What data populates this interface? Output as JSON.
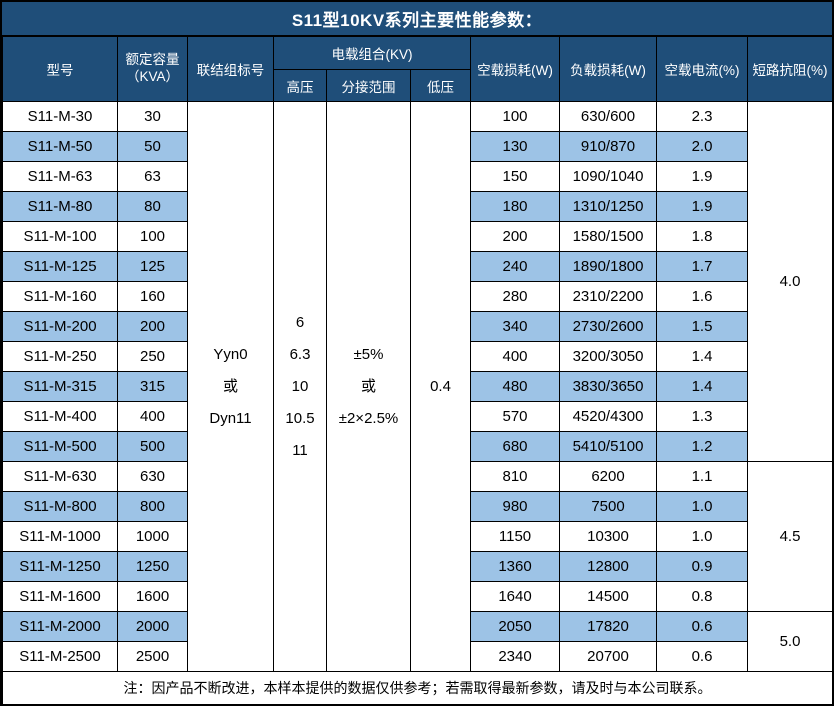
{
  "title": "S11型10KV系列主要性能参数：",
  "colors": {
    "header_bg": "#1F4E79",
    "header_text": "#FFFFFF",
    "alt_row_bg": "#9DC3E6",
    "border": "#000000"
  },
  "header": {
    "model": "型号",
    "capacity_line1": "额定容量",
    "capacity_line2": "（KVA）",
    "connection": "联结组标号",
    "voltage_group": "电载组合(KV)",
    "hv": "高压",
    "tap_range": "分接范围",
    "lv": "低压",
    "no_load_loss": "空载损耗(W)",
    "load_loss": "负载损耗(W)",
    "no_load_current": "空载电流(%)",
    "impedance": "短路抗阻(%)"
  },
  "merged": {
    "connection_lines": [
      "Yyn0",
      "或",
      "Dyn11"
    ],
    "hv_lines": [
      "6",
      "6.3",
      "10",
      "10.5",
      "11"
    ],
    "tap_lines": [
      "±5%",
      "或",
      "±2×2.5%"
    ],
    "lv": "0.4"
  },
  "rows": [
    {
      "model": "S11-M-30",
      "capacity": "30",
      "no_load_loss": "100",
      "load_loss": "630/600",
      "no_load_current": "2.3"
    },
    {
      "model": "S11-M-50",
      "capacity": "50",
      "no_load_loss": "130",
      "load_loss": "910/870",
      "no_load_current": "2.0"
    },
    {
      "model": "S11-M-63",
      "capacity": "63",
      "no_load_loss": "150",
      "load_loss": "1090/1040",
      "no_load_current": "1.9"
    },
    {
      "model": "S11-M-80",
      "capacity": "80",
      "no_load_loss": "180",
      "load_loss": "1310/1250",
      "no_load_current": "1.9"
    },
    {
      "model": "S11-M-100",
      "capacity": "100",
      "no_load_loss": "200",
      "load_loss": "1580/1500",
      "no_load_current": "1.8"
    },
    {
      "model": "S11-M-125",
      "capacity": "125",
      "no_load_loss": "240",
      "load_loss": "1890/1800",
      "no_load_current": "1.7"
    },
    {
      "model": "S11-M-160",
      "capacity": "160",
      "no_load_loss": "280",
      "load_loss": "2310/2200",
      "no_load_current": "1.6"
    },
    {
      "model": "S11-M-200",
      "capacity": "200",
      "no_load_loss": "340",
      "load_loss": "2730/2600",
      "no_load_current": "1.5"
    },
    {
      "model": "S11-M-250",
      "capacity": "250",
      "no_load_loss": "400",
      "load_loss": "3200/3050",
      "no_load_current": "1.4"
    },
    {
      "model": "S11-M-315",
      "capacity": "315",
      "no_load_loss": "480",
      "load_loss": "3830/3650",
      "no_load_current": "1.4"
    },
    {
      "model": "S11-M-400",
      "capacity": "400",
      "no_load_loss": "570",
      "load_loss": "4520/4300",
      "no_load_current": "1.3"
    },
    {
      "model": "S11-M-500",
      "capacity": "500",
      "no_load_loss": "680",
      "load_loss": "5410/5100",
      "no_load_current": "1.2"
    },
    {
      "model": "S11-M-630",
      "capacity": "630",
      "no_load_loss": "810",
      "load_loss": "6200",
      "no_load_current": "1.1"
    },
    {
      "model": "S11-M-800",
      "capacity": "800",
      "no_load_loss": "980",
      "load_loss": "7500",
      "no_load_current": "1.0"
    },
    {
      "model": "S11-M-1000",
      "capacity": "1000",
      "no_load_loss": "1150",
      "load_loss": "10300",
      "no_load_current": "1.0"
    },
    {
      "model": "S11-M-1250",
      "capacity": "1250",
      "no_load_loss": "1360",
      "load_loss": "12800",
      "no_load_current": "0.9"
    },
    {
      "model": "S11-M-1600",
      "capacity": "1600",
      "no_load_loss": "1640",
      "load_loss": "14500",
      "no_load_current": "0.8"
    },
    {
      "model": "S11-M-2000",
      "capacity": "2000",
      "no_load_loss": "2050",
      "load_loss": "17820",
      "no_load_current": "0.6"
    },
    {
      "model": "S11-M-2500",
      "capacity": "2500",
      "no_load_loss": "2340",
      "load_loss": "20700",
      "no_load_current": "0.6"
    }
  ],
  "impedance_groups": [
    {
      "value": "4.0",
      "span": 12
    },
    {
      "value": "4.5",
      "span": 5
    },
    {
      "value": "5.0",
      "span": 2
    }
  ],
  "note": "注：因产品不断改进，本样本提供的数据仅供参考；若需取得最新参数，请及时与本公司联系。"
}
